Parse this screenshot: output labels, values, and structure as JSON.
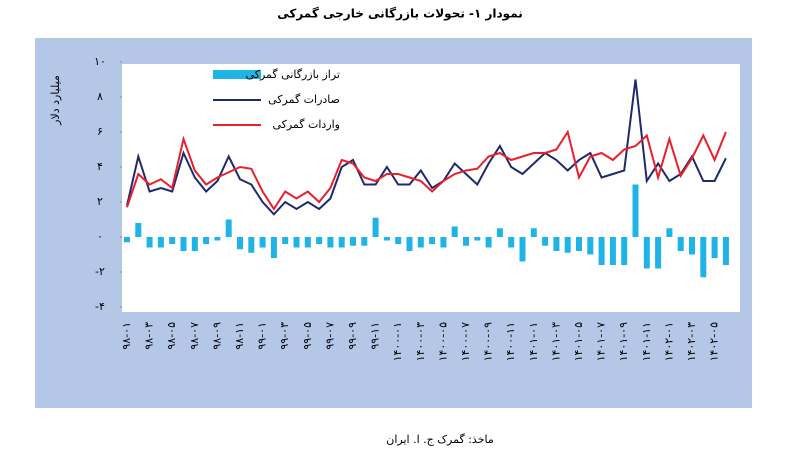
{
  "chart_data": {
    "type": "bar_line",
    "title": "نمودار ۱- تحولات بازرگانی خارجی گمرکی",
    "source": "ماخذ: گمرک ج. ا. ایران",
    "y_label": "میلیارد دلار",
    "categories": [
      "۹۸-۰۱",
      null,
      "۹۸-۰۳",
      null,
      "۹۸-۰۵",
      null,
      "۹۸-۰۷",
      null,
      "۹۸-۰۹",
      null,
      "۹۸-۱۱",
      null,
      "۹۹-۰۱",
      null,
      "۹۹-۰۳",
      null,
      "۹۹-۰۵",
      null,
      "۹۹-۰۷",
      null,
      "۹۹-۰۹",
      null,
      "۹۹-۱۱",
      null,
      "۱۴۰۰-۰۱",
      null,
      "۱۴۰۰-۰۳",
      null,
      "۱۴۰۰-۰۵",
      null,
      "۱۴۰۰-۰۷",
      null,
      "۱۴۰۰-۰۹",
      null,
      "۱۴۰۰-۱۱",
      null,
      "۱۴۰۱-۰۱",
      null,
      "۱۴۰۱-۰۳",
      null,
      "۱۴۰۱-۰۵",
      null,
      "۱۴۰۱-۰۷",
      null,
      "۱۴۰۱-۰۹",
      null,
      "۱۴۰۱-۱۱",
      null,
      "۱۴۰۲-۰۱",
      null,
      "۱۴۰۲-۰۳",
      null,
      "۱۴۰۲-۰۵",
      null
    ],
    "series": [
      {
        "name": "تراز بازرگانی گمرکی",
        "kind": "bar",
        "color": "#1eb4e6",
        "values": [
          -0.3,
          0.8,
          -0.6,
          -0.6,
          -0.4,
          -0.8,
          -0.8,
          -0.4,
          -0.2,
          1.0,
          -0.7,
          -0.9,
          -0.6,
          -1.2,
          -0.4,
          -0.6,
          -0.6,
          -0.4,
          -0.6,
          -0.6,
          -0.5,
          -0.5,
          1.1,
          -0.2,
          -0.4,
          -0.8,
          -0.6,
          -0.4,
          -0.6,
          0.6,
          -0.5,
          -0.2,
          -0.6,
          0.5,
          -0.6,
          -1.4,
          0.5,
          -0.5,
          -0.8,
          -0.9,
          -0.8,
          -1.0,
          -1.6,
          -1.6,
          -1.6,
          3.0,
          -1.8,
          -1.8,
          0.5,
          -0.8,
          -1.0,
          -2.3,
          -1.2,
          -1.6
        ]
      },
      {
        "name": "صادرات گمرکی",
        "kind": "line",
        "color": "#1f2a6b",
        "values": [
          1.8,
          4.6,
          2.6,
          2.8,
          2.6,
          4.8,
          3.4,
          2.6,
          3.2,
          4.6,
          3.3,
          3.0,
          2.0,
          1.3,
          2.0,
          1.6,
          2.0,
          1.6,
          2.2,
          4.0,
          4.4,
          3.0,
          3.0,
          4.0,
          3.0,
          3.0,
          3.8,
          2.8,
          3.2,
          4.2,
          3.6,
          3.0,
          4.2,
          5.2,
          4.0,
          3.6,
          4.2,
          4.8,
          4.4,
          3.8,
          4.4,
          4.8,
          3.4,
          3.6,
          3.8,
          9.0,
          3.2,
          4.2,
          3.2,
          3.6,
          4.6,
          3.2,
          3.2,
          4.5
        ]
      },
      {
        "name": "واردات گمرکی",
        "kind": "line",
        "color": "#e8202a",
        "values": [
          1.7,
          3.6,
          3.0,
          3.3,
          2.8,
          5.6,
          3.8,
          3.0,
          3.4,
          3.7,
          4.0,
          3.9,
          2.6,
          1.6,
          2.6,
          2.2,
          2.6,
          2.0,
          2.8,
          4.4,
          4.2,
          3.4,
          3.2,
          3.6,
          3.6,
          3.4,
          3.2,
          2.6,
          3.2,
          3.6,
          3.8,
          3.9,
          4.6,
          4.8,
          4.4,
          4.6,
          4.8,
          4.8,
          5.0,
          6.0,
          3.4,
          4.6,
          4.8,
          4.4,
          5.0,
          5.2,
          5.8,
          3.4,
          5.6,
          3.5,
          4.5,
          5.8,
          4.4,
          6.0
        ]
      }
    ],
    "ylim": [
      -4,
      10
    ],
    "yticks": [
      {
        "value": -4,
        "label": "-۴"
      },
      {
        "value": -2,
        "label": "-۲"
      },
      {
        "value": 0,
        "label": "۰"
      },
      {
        "value": 2,
        "label": "۲"
      },
      {
        "value": 4,
        "label": "۴"
      },
      {
        "value": 6,
        "label": "۶"
      },
      {
        "value": 8,
        "label": "۸"
      },
      {
        "value": 10,
        "label": "۱۰"
      }
    ],
    "panel_color": "#b4c7e7"
  }
}
